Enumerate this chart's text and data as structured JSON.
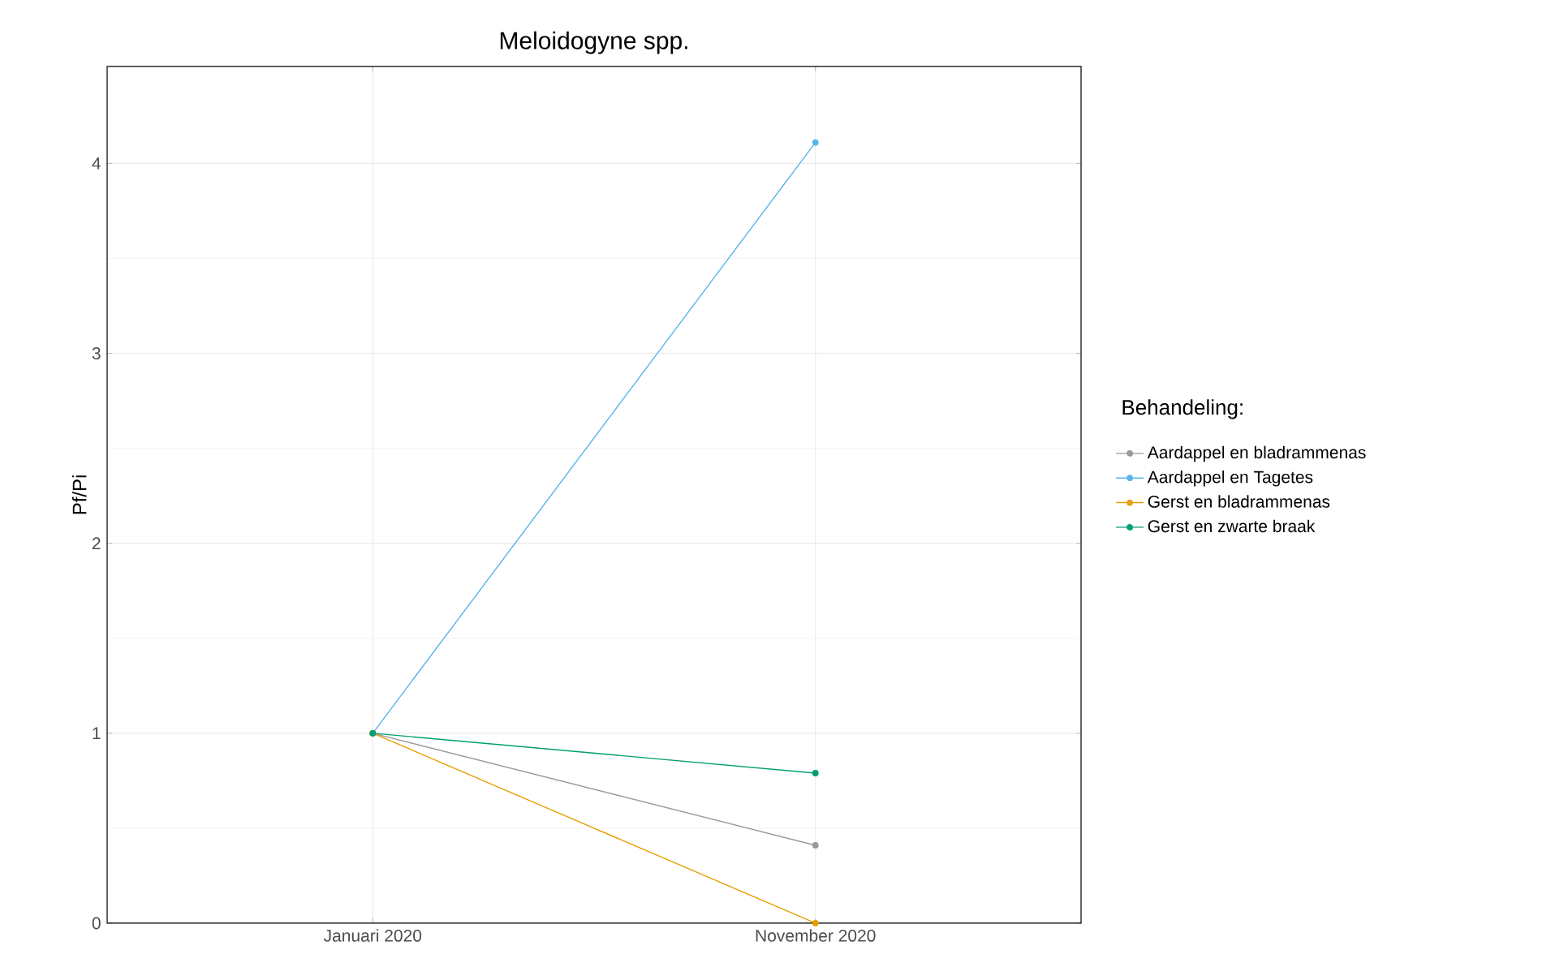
{
  "chart_data": {
    "type": "line",
    "title": "Meloidogyne spp.",
    "ylabel": "Pf/Pi",
    "legend_title": "Behandeling:",
    "categories": [
      "Januari 2020",
      "November 2020"
    ],
    "series": [
      {
        "name": "Aardappel en bladrammenas",
        "color": "#999999",
        "values": [
          1,
          0.41
        ]
      },
      {
        "name": "Aardappel en Tagetes",
        "color": "#56B4E9",
        "values": [
          1,
          4.11
        ]
      },
      {
        "name": "Gerst en bladrammenas",
        "color": "#E69F00",
        "values": [
          1,
          0
        ]
      },
      {
        "name": "Gerst en zwarte braak",
        "color": "#009E73",
        "values": [
          1,
          0.79
        ]
      }
    ],
    "ylim": [
      0,
      4.51
    ],
    "yticks": [
      0,
      1,
      2,
      3,
      4
    ],
    "grid": true,
    "legend": "right",
    "marker": "circle",
    "line_style": "solid"
  }
}
